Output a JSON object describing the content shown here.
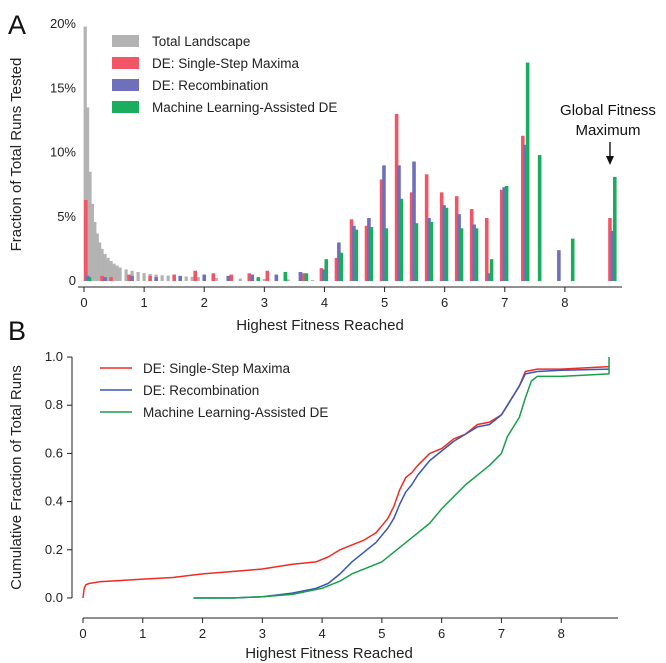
{
  "chart_data": [
    {
      "type": "bar",
      "panel": "A",
      "xlabel": "Highest Fitness Reached",
      "ylabel": "Fraction of Total Runs Tested",
      "xlim": [
        -0.1,
        8.95
      ],
      "ylim": [
        0,
        20
      ],
      "xticks": [
        0,
        1,
        2,
        3,
        4,
        5,
        6,
        7,
        8
      ],
      "yticks": [
        0,
        5,
        10,
        15,
        20
      ],
      "ytick_labels": [
        "0",
        "5%",
        "10%",
        "15%",
        "20%"
      ],
      "grid": false,
      "legend_position": "top-left",
      "annotation": {
        "lines": [
          "Global Fitness",
          "Maximum"
        ],
        "x": 8.75
      },
      "series": [
        {
          "name": "Total Landscape",
          "color": "#b3b3b3",
          "x": [
            0.02,
            0.06,
            0.1,
            0.14,
            0.18,
            0.22,
            0.26,
            0.3,
            0.35,
            0.4,
            0.45,
            0.5,
            0.55,
            0.6,
            0.7,
            0.8,
            0.9,
            1.0,
            1.1,
            1.2,
            1.3,
            1.4,
            1.5,
            1.6,
            1.7,
            1.8,
            1.9,
            2.0,
            2.2,
            2.4,
            2.6,
            2.8,
            3.0,
            3.2,
            3.4,
            3.6,
            3.8
          ],
          "values": [
            19.8,
            13.5,
            8.5,
            6.0,
            4.6,
            3.7,
            3.0,
            2.5,
            2.1,
            1.8,
            1.55,
            1.35,
            1.2,
            1.05,
            0.9,
            0.8,
            0.7,
            0.62,
            0.55,
            0.5,
            0.45,
            0.42,
            0.4,
            0.37,
            0.35,
            0.32,
            0.3,
            0.28,
            0.25,
            0.22,
            0.2,
            0.18,
            0.16,
            0.14,
            0.12,
            0.1,
            0.08
          ]
        },
        {
          "name": "DE: Single-Step Maxima",
          "color": "#f25565",
          "x": [
            0.03,
            0.3,
            0.45,
            0.75,
            1.1,
            1.5,
            1.85,
            2.15,
            2.45,
            2.75,
            3.05,
            3.35,
            3.65,
            3.95,
            4.2,
            4.45,
            4.7,
            4.95,
            5.2,
            5.45,
            5.7,
            5.95,
            6.2,
            6.45,
            6.7,
            6.95,
            7.3,
            8.75
          ],
          "values": [
            6.3,
            0.4,
            0.3,
            0.5,
            0.4,
            0.5,
            0.8,
            0.6,
            0.5,
            0.6,
            0.8,
            0.5,
            0.6,
            1.0,
            1.8,
            4.8,
            4.3,
            7.9,
            13.0,
            6.9,
            8.3,
            6.9,
            6.6,
            5.6,
            4.9,
            7.1,
            11.3,
            4.9
          ]
        },
        {
          "name": "DE: Recombination",
          "color": "#6e70bb",
          "x": [
            0.06,
            0.35,
            0.8,
            1.2,
            1.6,
            2.0,
            2.4,
            2.8,
            3.2,
            3.6,
            3.99,
            4.24,
            4.49,
            4.74,
            4.99,
            5.24,
            5.49,
            5.74,
            5.99,
            6.24,
            6.49,
            6.74,
            6.99,
            7.34,
            7.9,
            8.79
          ],
          "values": [
            0.4,
            0.3,
            0.4,
            0.3,
            0.4,
            0.5,
            0.4,
            0.5,
            0.5,
            0.7,
            0.9,
            3.0,
            4.3,
            4.9,
            9.0,
            9.0,
            9.3,
            4.9,
            5.9,
            5.2,
            4.4,
            0.6,
            7.3,
            10.6,
            2.4,
            3.9
          ]
        },
        {
          "name": "Machine Learning-Assisted DE",
          "color": "#1aad5e",
          "x": [
            0.09,
            2.9,
            3.35,
            3.7,
            4.03,
            4.28,
            4.53,
            4.78,
            5.03,
            5.28,
            5.53,
            5.78,
            6.03,
            6.28,
            6.53,
            6.78,
            7.03,
            7.38,
            7.58,
            8.13,
            8.83
          ],
          "values": [
            0.3,
            0.3,
            0.7,
            0.6,
            1.7,
            2.2,
            4.0,
            4.2,
            4.1,
            6.4,
            4.5,
            4.6,
            5.7,
            4.1,
            4.1,
            1.7,
            7.4,
            17.0,
            9.8,
            3.3,
            8.1
          ]
        }
      ]
    },
    {
      "type": "line",
      "panel": "B",
      "xlabel": "Highest Fitness Reached",
      "ylabel": "Cumulative Fraction of Total Runs",
      "xlim": [
        -0.05,
        8.95
      ],
      "ylim": [
        -0.05,
        1.05
      ],
      "xticks": [
        0,
        1,
        2,
        3,
        4,
        5,
        6,
        7,
        8
      ],
      "yticks": [
        0.0,
        0.2,
        0.4,
        0.6,
        0.8,
        1.0
      ],
      "ytick_labels": [
        "0.0",
        "0.2",
        "0.4",
        "0.6",
        "0.8",
        "1.0"
      ],
      "grid": false,
      "legend_position": "top-left",
      "series": [
        {
          "name": "DE: Single-Step Maxima",
          "color": "#ef2b24",
          "x": [
            0.0,
            0.02,
            0.05,
            0.1,
            0.3,
            0.6,
            1.0,
            1.5,
            2.0,
            2.5,
            3.0,
            3.5,
            3.9,
            4.1,
            4.3,
            4.5,
            4.7,
            4.9,
            5.0,
            5.1,
            5.2,
            5.3,
            5.4,
            5.5,
            5.6,
            5.8,
            6.0,
            6.2,
            6.4,
            6.6,
            6.8,
            7.0,
            7.2,
            7.3,
            7.4,
            7.6,
            8.0,
            8.8
          ],
          "y": [
            0.0,
            0.04,
            0.055,
            0.06,
            0.068,
            0.072,
            0.078,
            0.085,
            0.1,
            0.11,
            0.12,
            0.14,
            0.15,
            0.17,
            0.2,
            0.22,
            0.24,
            0.27,
            0.3,
            0.33,
            0.38,
            0.45,
            0.5,
            0.52,
            0.55,
            0.6,
            0.62,
            0.66,
            0.68,
            0.72,
            0.73,
            0.76,
            0.84,
            0.88,
            0.94,
            0.95,
            0.95,
            0.96
          ]
        },
        {
          "name": "DE: Recombination",
          "color": "#3a56b4",
          "x": [
            1.85,
            2.5,
            3.0,
            3.5,
            3.9,
            4.1,
            4.3,
            4.5,
            4.7,
            4.9,
            5.0,
            5.1,
            5.2,
            5.3,
            5.4,
            5.5,
            5.6,
            5.8,
            6.0,
            6.2,
            6.4,
            6.6,
            6.8,
            7.0,
            7.2,
            7.3,
            7.4,
            7.6,
            8.0,
            8.8
          ],
          "y": [
            0.0,
            0.0,
            0.005,
            0.02,
            0.04,
            0.06,
            0.1,
            0.15,
            0.19,
            0.23,
            0.26,
            0.29,
            0.33,
            0.39,
            0.44,
            0.47,
            0.51,
            0.57,
            0.61,
            0.65,
            0.68,
            0.71,
            0.72,
            0.76,
            0.84,
            0.88,
            0.93,
            0.94,
            0.945,
            0.95
          ]
        },
        {
          "name": "Machine Learning-Assisted DE",
          "color": "#1a9e4a",
          "x": [
            1.85,
            2.5,
            3.0,
            3.5,
            4.0,
            4.3,
            4.5,
            4.7,
            5.0,
            5.2,
            5.4,
            5.6,
            5.8,
            6.0,
            6.2,
            6.4,
            6.6,
            6.8,
            7.0,
            7.1,
            7.3,
            7.4,
            7.5,
            7.6,
            8.0,
            8.8,
            8.8
          ],
          "y": [
            0.0,
            0.0,
            0.005,
            0.015,
            0.04,
            0.07,
            0.1,
            0.12,
            0.15,
            0.19,
            0.23,
            0.27,
            0.31,
            0.37,
            0.42,
            0.47,
            0.51,
            0.55,
            0.6,
            0.67,
            0.75,
            0.83,
            0.9,
            0.92,
            0.92,
            0.93,
            1.0
          ]
        }
      ]
    }
  ]
}
